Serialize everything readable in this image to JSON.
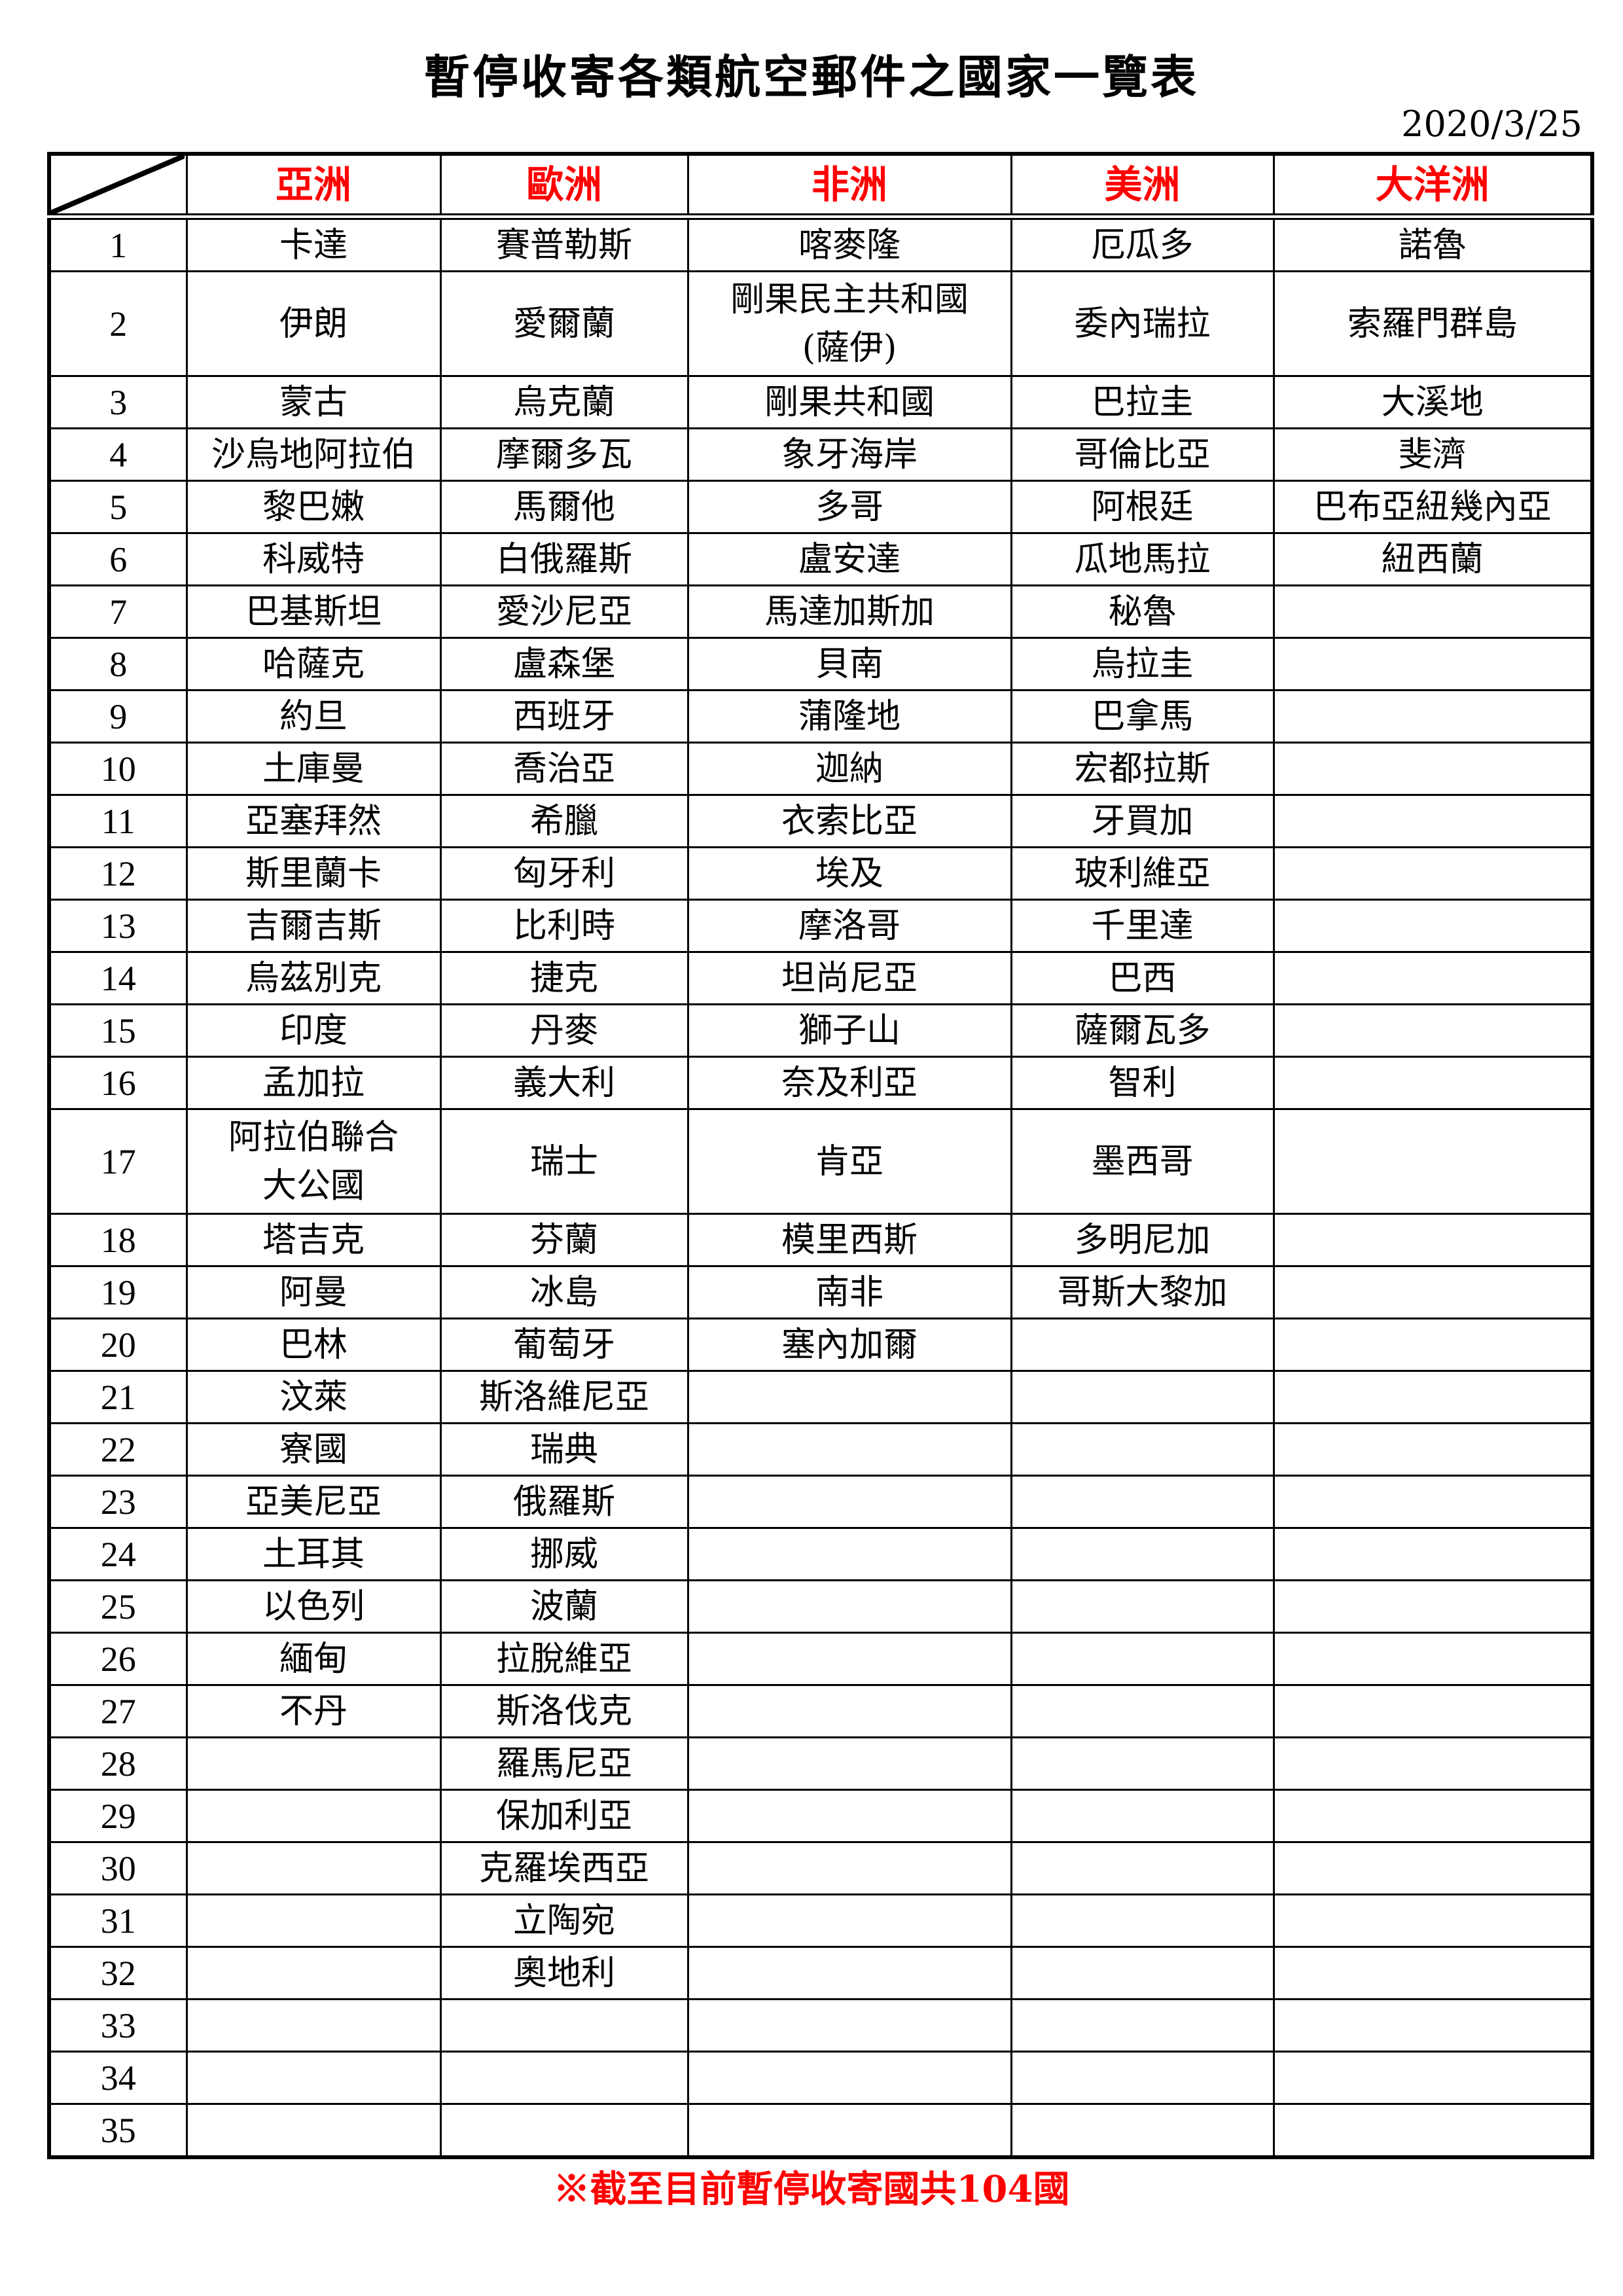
{
  "title": "暫停收寄各類航空郵件之國家一覽表",
  "date": "2020/3/25",
  "accent_color": "#ff0000",
  "columns": [
    "亞洲",
    "歐洲",
    "非洲",
    "美洲",
    "大洋洲"
  ],
  "rows": [
    [
      "1",
      "卡達",
      "賽普勒斯",
      "喀麥隆",
      "厄瓜多",
      "諾魯"
    ],
    [
      "2",
      "伊朗",
      "愛爾蘭",
      "剛果民主共和國\n(薩伊)",
      "委內瑞拉",
      "索羅門群島"
    ],
    [
      "3",
      "蒙古",
      "烏克蘭",
      "剛果共和國",
      "巴拉圭",
      "大溪地"
    ],
    [
      "4",
      "沙烏地阿拉伯",
      "摩爾多瓦",
      "象牙海岸",
      "哥倫比亞",
      "斐濟"
    ],
    [
      "5",
      "黎巴嫩",
      "馬爾他",
      "多哥",
      "阿根廷",
      "巴布亞紐幾內亞"
    ],
    [
      "6",
      "科威特",
      "白俄羅斯",
      "盧安達",
      "瓜地馬拉",
      "紐西蘭"
    ],
    [
      "7",
      "巴基斯坦",
      "愛沙尼亞",
      "馬達加斯加",
      "秘魯",
      ""
    ],
    [
      "8",
      "哈薩克",
      "盧森堡",
      "貝南",
      "烏拉圭",
      ""
    ],
    [
      "9",
      "約旦",
      "西班牙",
      "蒲隆地",
      "巴拿馬",
      ""
    ],
    [
      "10",
      "土庫曼",
      "喬治亞",
      "迦納",
      "宏都拉斯",
      ""
    ],
    [
      "11",
      "亞塞拜然",
      "希臘",
      "衣索比亞",
      "牙買加",
      ""
    ],
    [
      "12",
      "斯里蘭卡",
      "匈牙利",
      "埃及",
      "玻利維亞",
      ""
    ],
    [
      "13",
      "吉爾吉斯",
      "比利時",
      "摩洛哥",
      "千里達",
      ""
    ],
    [
      "14",
      "烏茲別克",
      "捷克",
      "坦尚尼亞",
      "巴西",
      ""
    ],
    [
      "15",
      "印度",
      "丹麥",
      "獅子山",
      "薩爾瓦多",
      ""
    ],
    [
      "16",
      "孟加拉",
      "義大利",
      "奈及利亞",
      "智利",
      ""
    ],
    [
      "17",
      "阿拉伯聯合\n大公國",
      "瑞士",
      "肯亞",
      "墨西哥",
      ""
    ],
    [
      "18",
      "塔吉克",
      "芬蘭",
      "模里西斯",
      "多明尼加",
      ""
    ],
    [
      "19",
      "阿曼",
      "冰島",
      "南非",
      "哥斯大黎加",
      ""
    ],
    [
      "20",
      "巴林",
      "葡萄牙",
      "塞內加爾",
      "",
      ""
    ],
    [
      "21",
      "汶萊",
      "斯洛維尼亞",
      "",
      "",
      ""
    ],
    [
      "22",
      "寮國",
      "瑞典",
      "",
      "",
      ""
    ],
    [
      "23",
      "亞美尼亞",
      "俄羅斯",
      "",
      "",
      ""
    ],
    [
      "24",
      "土耳其",
      "挪威",
      "",
      "",
      ""
    ],
    [
      "25",
      "以色列",
      "波蘭",
      "",
      "",
      ""
    ],
    [
      "26",
      "緬甸",
      "拉脫維亞",
      "",
      "",
      ""
    ],
    [
      "27",
      "不丹",
      "斯洛伐克",
      "",
      "",
      ""
    ],
    [
      "28",
      "",
      "羅馬尼亞",
      "",
      "",
      ""
    ],
    [
      "29",
      "",
      "保加利亞",
      "",
      "",
      ""
    ],
    [
      "30",
      "",
      "克羅埃西亞",
      "",
      "",
      ""
    ],
    [
      "31",
      "",
      "立陶宛",
      "",
      "",
      ""
    ],
    [
      "32",
      "",
      "奧地利",
      "",
      "",
      ""
    ],
    [
      "33",
      "",
      "",
      "",
      "",
      ""
    ],
    [
      "34",
      "",
      "",
      "",
      "",
      ""
    ],
    [
      "35",
      "",
      "",
      "",
      "",
      ""
    ]
  ],
  "footer": "※截至目前暫停收寄國共104國"
}
